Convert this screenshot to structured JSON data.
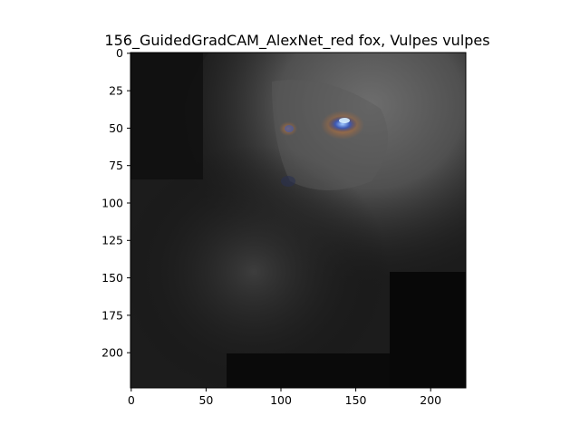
{
  "figure": {
    "title": "156_GuidedGradCAM_AlexNet_red fox, Vulpes vulpes"
  },
  "image": {
    "description_subject": "red fox guided Grad-CAM saliency map",
    "width_units": 224,
    "height_units": 224
  },
  "axes": {
    "x": {
      "ticks": [
        0,
        50,
        100,
        150,
        200
      ],
      "range": [
        0,
        224
      ]
    },
    "y": {
      "ticks": [
        0,
        25,
        50,
        75,
        100,
        125,
        150,
        175,
        200
      ],
      "range": [
        0,
        224
      ],
      "inverted": true
    }
  },
  "colors": {
    "background": "#000000",
    "highlight": "#4a4a4a",
    "eye_orange": "#c86a2a",
    "eye_blue": "#3c58b4"
  }
}
